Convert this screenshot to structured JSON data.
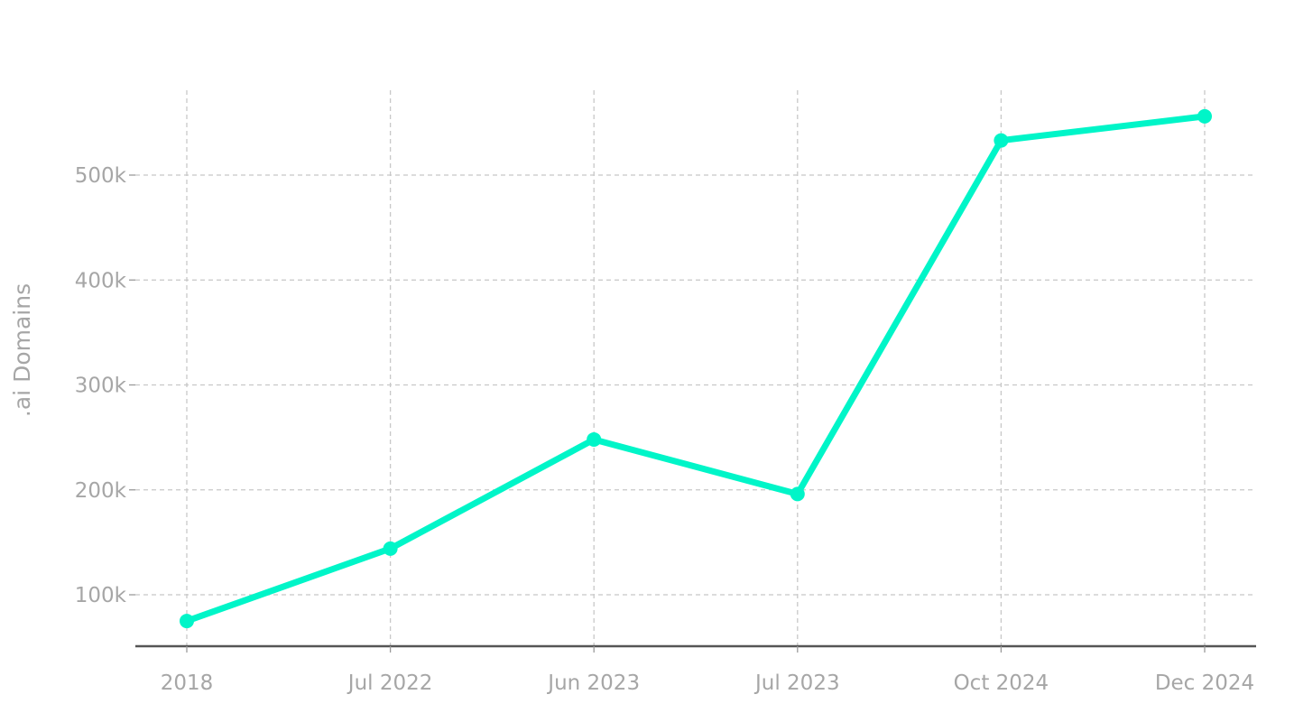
{
  "chart_data": {
    "type": "line",
    "title": "",
    "xlabel": "",
    "ylabel": ".ai Domains",
    "categories": [
      "2018",
      "Jul 2022",
      "Jun 2023",
      "Jul 2023",
      "Oct 2024",
      "Dec 2024"
    ],
    "series": [
      {
        "values": [
          75000,
          144000,
          248000,
          196000,
          533000,
          556000
        ],
        "color": "#00f5c8"
      }
    ],
    "yticks": [
      100000,
      200000,
      300000,
      400000,
      500000
    ],
    "ytick_labels": [
      "100k",
      "200k",
      "300k",
      "400k",
      "500k"
    ],
    "ylim": [
      50000,
      582000
    ],
    "grid": true,
    "legend": "none"
  }
}
